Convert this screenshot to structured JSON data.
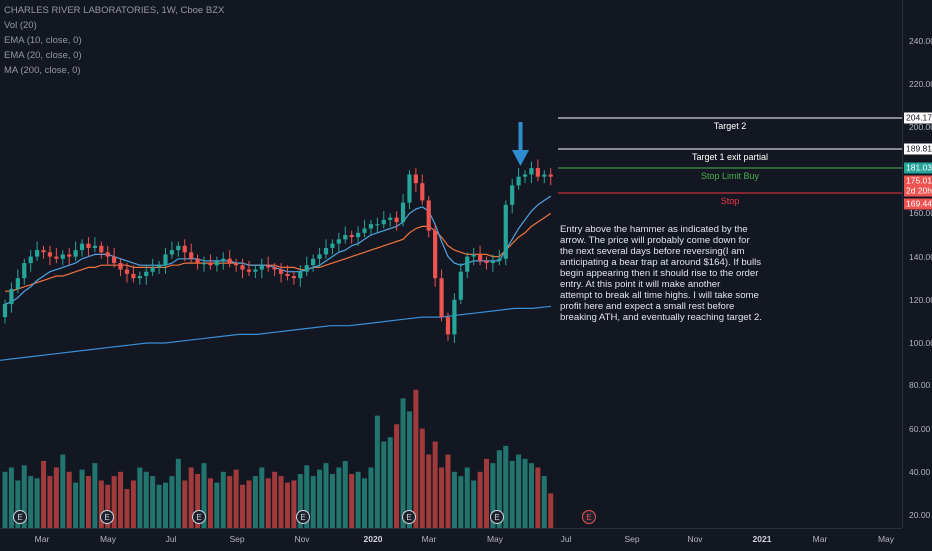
{
  "legend": {
    "symbol": "CHARLES RIVER LABORATORIES, 1W, Cboe BZX",
    "vol": "Vol (20)",
    "ema10": "EMA (10, close, 0)",
    "ema20": "EMA (20, close, 0)",
    "ma200": "MA (200, close, 0)"
  },
  "colors": {
    "background": "#131722",
    "up": "#26a69a",
    "down": "#ef5350",
    "vol_up": "#22756f",
    "vol_down": "#a03a3b",
    "ema10": "#4fa3e0",
    "ema20": "#f0733c",
    "ma200": "#3a8fd6",
    "stop_limit": "#4caf50",
    "stop": "#f23645",
    "arrow": "#2e8ccf"
  },
  "price_axis": {
    "ticks": [
      "240.00",
      "220.00",
      "200.00",
      "180.00",
      "160.00",
      "140.00",
      "120.00",
      "100.00",
      "80.00",
      "60.00",
      "40.00",
      "20.00"
    ],
    "tags": [
      {
        "text": "204.17",
        "price": 204.17,
        "style": "white"
      },
      {
        "text": "189.81",
        "price": 189.81,
        "style": "white"
      },
      {
        "text": "181.03",
        "price": 181.03,
        "style": "green"
      },
      {
        "text": "175.01",
        "price": 175.01,
        "style": "red"
      },
      {
        "text": "2d 20h",
        "price": 170.6,
        "style": "red"
      },
      {
        "text": "169.44",
        "price": 164.3,
        "style": "red"
      }
    ]
  },
  "time_axis": {
    "labels": [
      "Mar",
      "May",
      "Jul",
      "Sep",
      "Nov",
      "2020",
      "Mar",
      "May",
      "Jul",
      "Sep",
      "Nov",
      "2021",
      "Mar",
      "May"
    ],
    "bold": [
      false,
      false,
      false,
      false,
      false,
      true,
      false,
      false,
      false,
      false,
      false,
      true,
      false,
      false
    ]
  },
  "levels": [
    {
      "label": "Target 2",
      "price": 204.17,
      "color": "#ffffff"
    },
    {
      "label": "Target 1 exit partial",
      "price": 189.81,
      "color": "#ffffff"
    },
    {
      "label": "Stop Limit Buy",
      "price": 181.03,
      "color": "#4caf50"
    },
    {
      "label": "Stop",
      "price": 169.44,
      "color": "#f23645"
    }
  ],
  "note": "Entry above the hammer as indicated by the\narrow. The price will probably come down for\nthe next several days before reversing(I am\nanticipating a bear trap at around $164). If bulls\n begin appearing then it should rise to the order\n entry. At this point it will make another\nattempt to break all time highs. I will take some\n profit here and expect a small rest before\nbreaking ATH, and eventually reaching target 2.",
  "earnings_marker": "E",
  "chart_data": {
    "type": "candlestick",
    "title": "CHARLES RIVER LABORATORIES, 1W, Cboe BZX",
    "ylim": [
      20,
      250
    ],
    "closes": [
      118,
      125,
      130,
      137,
      140,
      143,
      142,
      140,
      139,
      141,
      140,
      143,
      146,
      144,
      145,
      142,
      140,
      137,
      134,
      132,
      130,
      131,
      133,
      135,
      136,
      141,
      143,
      145,
      142,
      139,
      137,
      137,
      136,
      138,
      139,
      137,
      136,
      134,
      133,
      134,
      136,
      135,
      134,
      132,
      131,
      130,
      133,
      136,
      139,
      141,
      144,
      146,
      148,
      150,
      149,
      151,
      153,
      155,
      155,
      157,
      158,
      156,
      165,
      178,
      174,
      166,
      152,
      130,
      112,
      104,
      120,
      133,
      140,
      141,
      138,
      137,
      138,
      139,
      164,
      173,
      177,
      178,
      181,
      177,
      178,
      177
    ],
    "ema10": [
      118,
      119,
      121,
      124,
      126,
      129,
      131,
      133,
      134,
      135,
      136,
      137,
      139,
      140,
      141,
      141,
      141,
      140,
      139,
      138,
      137,
      136,
      136,
      136,
      136,
      136,
      137,
      139,
      139,
      139,
      139,
      138,
      138,
      138,
      138,
      138,
      137,
      137,
      136,
      136,
      136,
      136,
      135,
      134,
      133,
      133,
      133,
      134,
      135,
      136,
      138,
      140,
      142,
      143,
      145,
      146,
      148,
      150,
      151,
      152,
      153,
      154,
      156,
      160,
      162,
      163,
      161,
      155,
      147,
      140,
      137,
      136,
      137,
      138,
      138,
      138,
      138,
      138,
      143,
      148,
      153,
      157,
      161,
      164,
      166,
      168
    ],
    "ema20": [
      124,
      124,
      125,
      126,
      127,
      128,
      129,
      130,
      131,
      131,
      132,
      133,
      134,
      135,
      135,
      136,
      136,
      136,
      136,
      136,
      135,
      135,
      135,
      135,
      135,
      135,
      136,
      136,
      137,
      137,
      137,
      137,
      137,
      137,
      137,
      137,
      137,
      137,
      136,
      136,
      136,
      136,
      136,
      135,
      135,
      135,
      134,
      134,
      135,
      135,
      136,
      137,
      138,
      139,
      140,
      141,
      142,
      143,
      144,
      145,
      146,
      147,
      148,
      151,
      153,
      154,
      154,
      152,
      149,
      145,
      143,
      142,
      141,
      141,
      141,
      141,
      140,
      140,
      143,
      146,
      149,
      151,
      154,
      156,
      158,
      160
    ],
    "ma200": [
      92,
      93,
      94,
      95,
      96,
      97,
      98,
      99,
      100,
      100,
      101,
      102,
      103,
      104,
      104,
      105,
      106,
      107,
      108,
      108,
      109,
      110,
      111,
      112,
      112,
      113,
      114,
      115,
      116,
      116,
      117
    ],
    "volume": [
      40,
      42,
      36,
      43,
      38,
      37,
      45,
      38,
      42,
      48,
      40,
      35,
      41,
      38,
      44,
      36,
      34,
      38,
      40,
      32,
      36,
      42,
      40,
      38,
      34,
      35,
      38,
      46,
      36,
      42,
      39,
      44,
      37,
      35,
      40,
      38,
      41,
      34,
      36,
      38,
      42,
      37,
      40,
      38,
      35,
      36,
      39,
      43,
      38,
      41,
      44,
      39,
      42,
      45,
      39,
      40,
      37,
      42,
      66,
      54,
      56,
      62,
      74,
      68,
      78,
      60,
      48,
      54,
      42,
      48,
      40,
      38,
      42,
      36,
      40,
      46,
      44,
      50,
      52,
      45,
      48,
      46,
      44,
      42,
      38,
      30
    ]
  }
}
